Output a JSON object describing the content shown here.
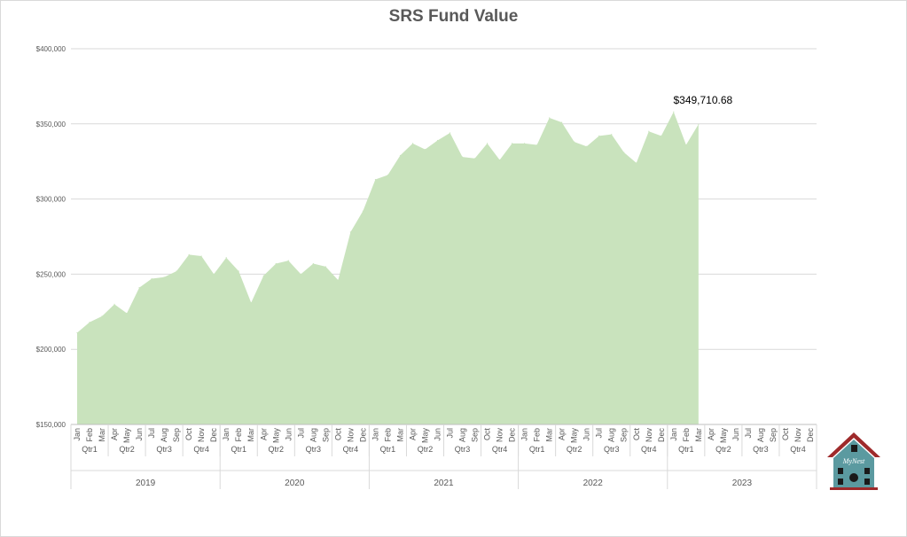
{
  "chart_data": {
    "type": "area",
    "title": "SRS Fund Value",
    "xlabel": "",
    "ylabel": "",
    "ylim": [
      150000,
      400000
    ],
    "yticks": [
      "$150,000",
      "$200,000",
      "$250,000",
      "$300,000",
      "$350,000",
      "$400,000"
    ],
    "ytick_values": [
      150000,
      200000,
      250000,
      300000,
      350000,
      400000
    ],
    "grid": true,
    "legend": "none",
    "color": "#c9e3bd",
    "months": [
      "Jan",
      "Feb",
      "Mar",
      "Apr",
      "May",
      "Jun",
      "Jul",
      "Aug",
      "Sep",
      "Oct",
      "Nov",
      "Dec"
    ],
    "quarters": [
      "Qtr1",
      "Qtr2",
      "Qtr3",
      "Qtr4"
    ],
    "years": [
      "2019",
      "2020",
      "2021",
      "2022",
      "2023"
    ],
    "values": [
      211000,
      218000,
      222000,
      230000,
      224000,
      241000,
      247000,
      248000,
      252000,
      263000,
      262000,
      250000,
      261000,
      252000,
      231000,
      249000,
      257000,
      259000,
      250000,
      257000,
      255000,
      246000,
      278000,
      292000,
      313000,
      316000,
      329000,
      337000,
      333000,
      339000,
      344000,
      328000,
      327000,
      337000,
      326000,
      337000,
      337000,
      336000,
      354000,
      351000,
      338000,
      335000,
      342000,
      343000,
      331000,
      324000,
      345000,
      342000,
      358000,
      336000,
      349710.68
    ],
    "annotation": {
      "text": "$349,710.68",
      "index": 50
    }
  },
  "logo": {
    "text": "MyNest",
    "color_roof": "#9e2a2b",
    "color_house": "#5b9aa0"
  }
}
